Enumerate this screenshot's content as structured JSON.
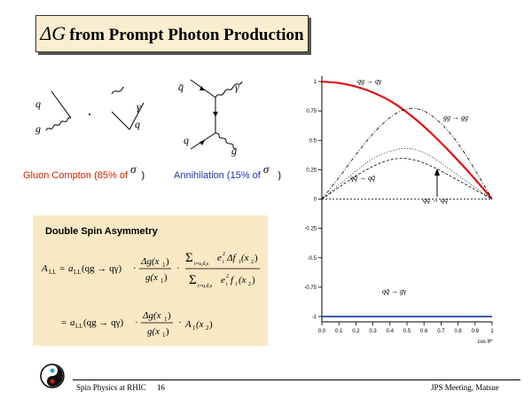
{
  "title": {
    "delta": "ΔG",
    "text": "from Prompt Photon Production"
  },
  "diagrams": {
    "compton_left": {
      "top": "q",
      "bottom": "g"
    },
    "compton_right": {
      "top": "γ",
      "bottom": "q"
    },
    "annihilation": {
      "top_left": "q̄",
      "top_right": "γ",
      "bottom_left": "q",
      "bottom_right": "g"
    }
  },
  "captions": {
    "compton": "Gluon Compton (85% of ",
    "compton_sigma": "σ",
    "compton_end": ")",
    "annihilation": "Annihilation (15% of ",
    "annihilation_sigma": "σ",
    "annihilation_end": ")"
  },
  "asymmetry": {
    "title": "Double Spin Asymmetry",
    "lhs": "A",
    "lhs_sub": "LL",
    "eq": "=",
    "a_ll": "a",
    "a_ll_sub": "LL",
    "process": "(qg → qγ)",
    "dot": "·",
    "dg_num": "Δg(x",
    "dg_den": "g(x",
    "one": "1",
    "two": "2",
    "close": ")",
    "sum": "Σ",
    "sum_index": "i=u,d,s",
    "e_sq": "e",
    "e_sub": "i",
    "e_sup": "2",
    "delta_f": "Δf",
    "f": "f",
    "f_sub": "1",
    "line2_eq": "=",
    "a_1": "A",
    "a_1_sub": "1"
  },
  "plot": {
    "y_ticks": [
      "1",
      "0.75",
      "0.5",
      "0.25",
      "0",
      "-0.25",
      "-0.5",
      "-0.75",
      "-1"
    ],
    "x_ticks": [
      "0.0",
      "0.1",
      "0.2",
      "0.3",
      "0.4",
      "0.5",
      "0.6",
      "0.7",
      "0.8",
      "0.9",
      "1"
    ],
    "x_label": "cos θ*",
    "curve_labels": {
      "qg": "qg → qγ",
      "gg": "gg → gg",
      "qqbar": "qq̄ → qq̄",
      "qq": "qq → qq",
      "annih": "qq̄ → gγ"
    }
  },
  "chart_data": {
    "type": "line",
    "xlabel": "cos θ*",
    "x": [
      0,
      0.1,
      0.2,
      0.3,
      0.4,
      0.5,
      0.6,
      0.7,
      0.8,
      0.9,
      1.0
    ],
    "ylim": [
      -1,
      1
    ],
    "series": [
      {
        "name": "qg → qγ",
        "values": [
          1.0,
          0.99,
          0.96,
          0.91,
          0.84,
          0.74,
          0.62,
          0.48,
          0.33,
          0.17,
          0.0
        ]
      },
      {
        "name": "gg → gg",
        "values": [
          0.0,
          0.18,
          0.38,
          0.56,
          0.7,
          0.78,
          0.76,
          0.65,
          0.48,
          0.25,
          0.0
        ]
      },
      {
        "name": "qq̄ → qq̄",
        "values": [
          0.0,
          0.12,
          0.24,
          0.35,
          0.41,
          0.44,
          0.4,
          0.31,
          0.2,
          0.1,
          0.0
        ]
      },
      {
        "name": "qq → qq",
        "values": [
          0.0,
          0.1,
          0.2,
          0.28,
          0.34,
          0.35,
          0.31,
          0.24,
          0.16,
          0.08,
          0.0
        ]
      },
      {
        "name": "qq̄ → gγ",
        "values": [
          -1,
          -1,
          -1,
          -1,
          -1,
          -1,
          -1,
          -1,
          -1,
          -1,
          -1
        ]
      }
    ]
  },
  "footer": {
    "left": "Spin Physics at RHIC",
    "page": "16",
    "right": "JPS Meeting, Matsue"
  },
  "colors": {
    "red_curve": "#dd1111",
    "blue_line": "#2244aa",
    "box_fill": "#f8e8c4"
  }
}
